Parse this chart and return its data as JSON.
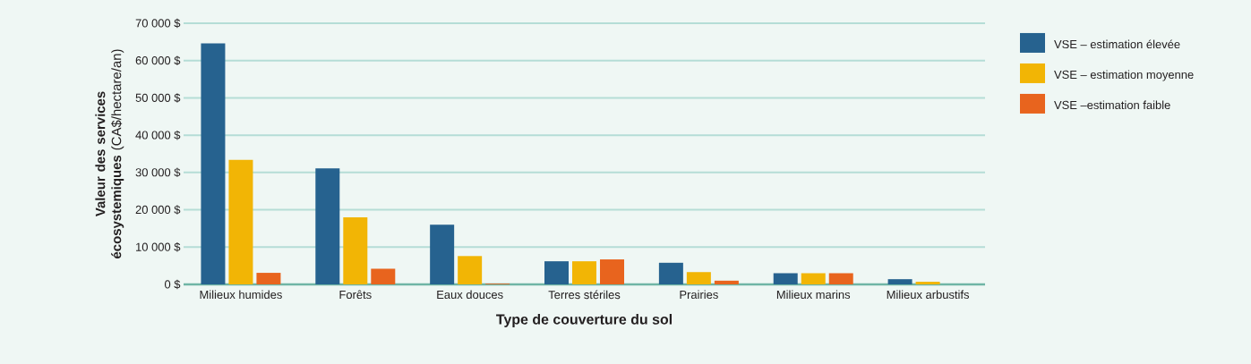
{
  "chart_data": {
    "type": "bar",
    "xlabel": "Type de couverture du sol",
    "ylabel": "**Valeur des services écosystemiques** (CA$/hectare/an)",
    "categories": [
      "Milieux humides",
      "Forêts",
      "Eaux douces",
      "Terres stériles",
      "Prairies",
      "Milieux marins",
      "Milieux arbustifs"
    ],
    "series": [
      {
        "name": "VSE – estimation élevée",
        "color": "#26628f",
        "values": [
          64600,
          31100,
          16000,
          6200,
          5800,
          3000,
          1400
        ]
      },
      {
        "name": "VSE – estimation moyenne",
        "color": "#f2b505",
        "values": [
          33400,
          18000,
          7600,
          6200,
          3300,
          3000,
          700
        ]
      },
      {
        "name": "VSE –estimation faible",
        "color": "#e8641e",
        "values": [
          3100,
          4200,
          200,
          6700,
          1000,
          3000,
          null
        ]
      }
    ],
    "ylim": [
      0,
      70000
    ],
    "yticks": [
      {
        "value": 0,
        "label": "0 $"
      },
      {
        "value": 10000,
        "label": "10 000 $"
      },
      {
        "value": 20000,
        "label": "20 000 $"
      },
      {
        "value": 30000,
        "label": "30 000 $"
      },
      {
        "value": 40000,
        "label": "40 000 $"
      },
      {
        "value": 50000,
        "label": "50 000 $"
      },
      {
        "value": 60000,
        "label": "60 000 $"
      },
      {
        "value": 70000,
        "label": "70 000 $"
      }
    ],
    "grid": "y",
    "legend": "right"
  }
}
